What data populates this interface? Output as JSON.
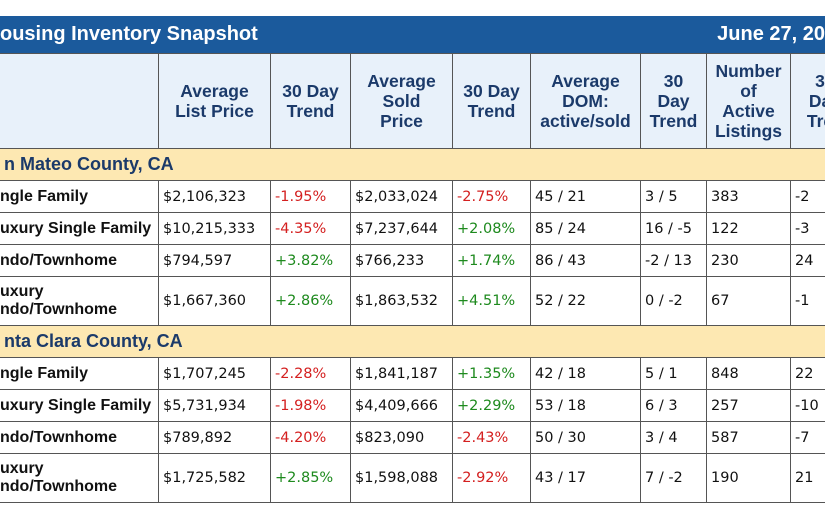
{
  "header": {
    "title": "ousing Inventory Snapshot",
    "date": "June 27, 20"
  },
  "columns": [
    [
      "Average",
      "List Price"
    ],
    [
      "30 Day",
      "Trend"
    ],
    [
      "Average",
      "Sold",
      "Price"
    ],
    [
      "30 Day",
      "Trend"
    ],
    [
      "Average",
      "DOM:",
      "active/sold"
    ],
    [
      "30",
      "Day",
      "Trend"
    ],
    [
      "Number",
      "of",
      "Active",
      "Listings"
    ],
    [
      "3",
      "Da",
      "Tre"
    ]
  ],
  "sections": [
    {
      "name": "n Mateo County, CA",
      "rows": [
        {
          "label": [
            "ngle Family"
          ],
          "cells": [
            "$2,106,323",
            "-1.95%",
            "$2,033,024",
            "-2.75%",
            "45 / 21",
            "3 / 5",
            "383",
            "-2"
          ]
        },
        {
          "label": [
            "uxury Single Family"
          ],
          "cells": [
            "$10,215,333",
            "-4.35%",
            "$7,237,644",
            "+2.08%",
            "85 / 24",
            "16 / -5",
            "122",
            "-3"
          ]
        },
        {
          "label": [
            "ndo/Townhome"
          ],
          "cells": [
            "$794,597",
            "+3.82%",
            "$766,233",
            "+1.74%",
            "86 / 43",
            "-2 / 13",
            "230",
            "24"
          ]
        },
        {
          "label": [
            "uxury",
            "ndo/Townhome"
          ],
          "cells": [
            "$1,667,360",
            "+2.86%",
            "$1,863,532",
            "+4.51%",
            "52 / 22",
            "0 / -2",
            "67",
            "-1"
          ]
        }
      ]
    },
    {
      "name": "nta Clara County, CA",
      "rows": [
        {
          "label": [
            "ngle Family"
          ],
          "cells": [
            "$1,707,245",
            "-2.28%",
            "$1,841,187",
            "+1.35%",
            "42 / 18",
            "5 / 1",
            "848",
            "22"
          ]
        },
        {
          "label": [
            "uxury Single Family"
          ],
          "cells": [
            "$5,731,934",
            "-1.98%",
            "$4,409,666",
            "+2.29%",
            "53 / 18",
            "6 / 3",
            "257",
            "-10"
          ]
        },
        {
          "label": [
            "ndo/Townhome"
          ],
          "cells": [
            "$789,892",
            "-4.20%",
            "$823,090",
            "-2.43%",
            "50 / 30",
            "3 / 4",
            "587",
            "-7"
          ]
        },
        {
          "label": [
            "uxury",
            "ndo/Townhome"
          ],
          "cells": [
            "$1,725,582",
            "+2.85%",
            "$1,598,088",
            "-2.92%",
            "43 / 17",
            "7 / -2",
            "190",
            "21"
          ]
        }
      ]
    }
  ]
}
